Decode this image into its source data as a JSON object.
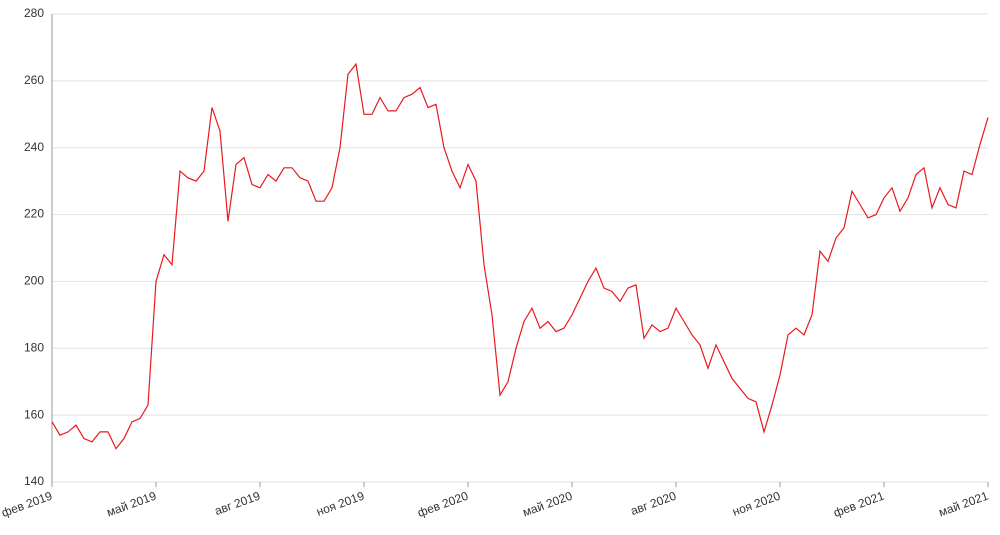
{
  "chart_data": {
    "type": "line",
    "categories": [
      "фев 2019",
      null,
      null,
      null,
      null,
      null,
      null,
      null,
      null,
      null,
      null,
      null,
      null,
      "май 2019",
      null,
      null,
      null,
      null,
      null,
      null,
      null,
      null,
      null,
      null,
      null,
      null,
      "авг 2019",
      null,
      null,
      null,
      null,
      null,
      null,
      null,
      null,
      null,
      null,
      null,
      null,
      "ноя 2019",
      null,
      null,
      null,
      null,
      null,
      null,
      null,
      null,
      null,
      null,
      null,
      null,
      "фев 2020",
      null,
      null,
      null,
      null,
      null,
      null,
      null,
      null,
      null,
      null,
      null,
      null,
      "май 2020",
      null,
      null,
      null,
      null,
      null,
      null,
      null,
      null,
      null,
      null,
      null,
      null,
      "авг 2020",
      null,
      null,
      null,
      null,
      null,
      null,
      null,
      null,
      null,
      null,
      null,
      null,
      "ноя 2020",
      null,
      null,
      null,
      null,
      null,
      null,
      null,
      null,
      null,
      null,
      null,
      null,
      "фев 2021",
      null,
      null,
      null,
      null,
      null,
      null,
      null,
      null,
      null,
      null,
      null,
      null,
      "май 2021"
    ],
    "series": [
      {
        "color": "#e8191d",
        "values": [
          158,
          154,
          155,
          157,
          153,
          152,
          155,
          155,
          150,
          153,
          158,
          159,
          163,
          200,
          208,
          205,
          233,
          231,
          230,
          233,
          252,
          245,
          218,
          235,
          237,
          229,
          228,
          232,
          230,
          234,
          234,
          231,
          230,
          224,
          224,
          228,
          240,
          262,
          265,
          250,
          250,
          255,
          251,
          251,
          255,
          256,
          258,
          252,
          253,
          240,
          233,
          228,
          235,
          230,
          205,
          190,
          166,
          170,
          180,
          188,
          192,
          186,
          188,
          185,
          186,
          190,
          195,
          200,
          204,
          198,
          197,
          194,
          198,
          199,
          183,
          187,
          185,
          186,
          192,
          188,
          184,
          181,
          174,
          181,
          176,
          171,
          168,
          165,
          164,
          155,
          163,
          172,
          184,
          186,
          184,
          190,
          209,
          206,
          213,
          216,
          227,
          223,
          219,
          220,
          225,
          228,
          221,
          225,
          232,
          234,
          222,
          228,
          223,
          222,
          233,
          232,
          241,
          249
        ]
      }
    ],
    "ylim": [
      140,
      280
    ],
    "yticks": [
      140,
      160,
      180,
      200,
      220,
      240,
      260,
      280
    ],
    "grid": true
  }
}
